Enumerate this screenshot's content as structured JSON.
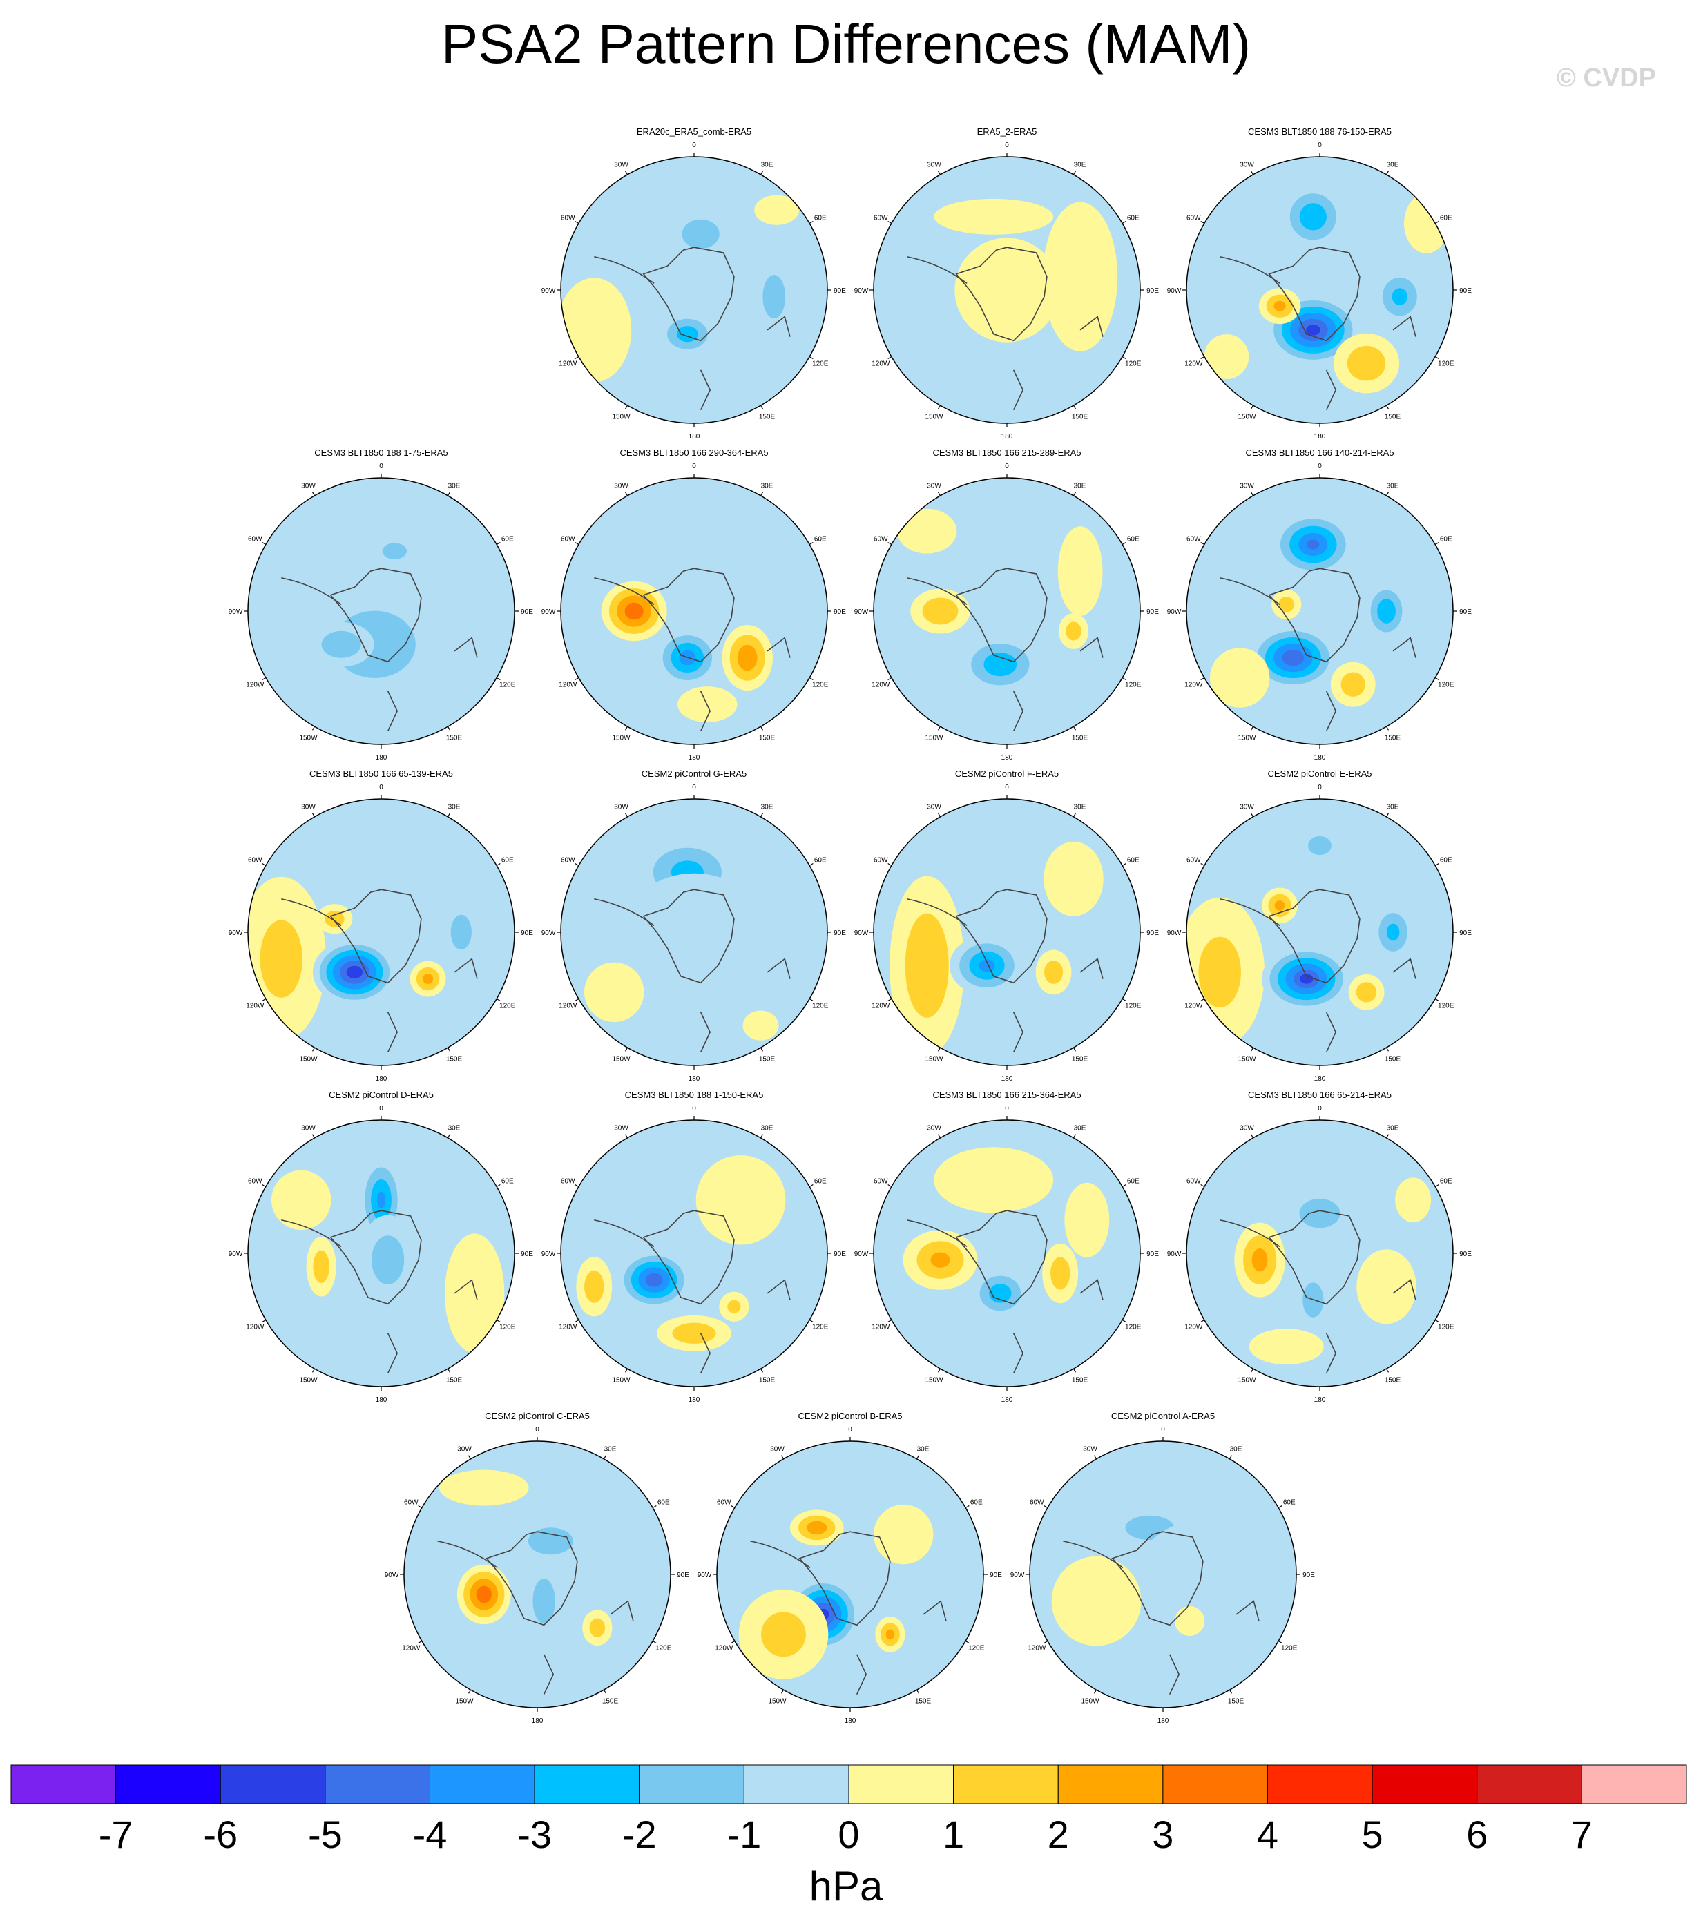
{
  "title": "PSA2 Pattern Differences (MAM)",
  "watermark": "© CVDP",
  "colors": {
    "land": "#444444",
    "levels": [
      "#7b22f0",
      "#1b00ff",
      "#2a3fe6",
      "#3b72ea",
      "#1e96ff",
      "#00c0ff",
      "#78c8f0",
      "#b4def4",
      "#fef898",
      "#ffd22d",
      "#ffa700",
      "#ff7300",
      "#ff2a00",
      "#e60000",
      "#d41f1f",
      "#ffb4b4"
    ]
  },
  "chart_data": {
    "type": "polar_contour_panels",
    "title": "PSA2 Pattern Differences (MAM)",
    "units": "hPa",
    "colorbar": {
      "ticks": [
        "-7",
        "-6",
        "-5",
        "-4",
        "-3",
        "-2",
        "-1",
        "0",
        "1",
        "2",
        "3",
        "4",
        "5",
        "6",
        "7"
      ],
      "label": "hPa",
      "min": -8,
      "max": 8,
      "interval": 1
    },
    "lon_labels": [
      "0",
      "30E",
      "60E",
      "90E",
      "120E",
      "150E",
      "180",
      "150W",
      "120W",
      "90W",
      "60W",
      "30W"
    ],
    "panels": [
      {
        "title": "ERA20c_ERA5_comb-ERA5",
        "row": 0,
        "col": 1,
        "blobs": [
          [
            0.05,
            -0.42,
            0.23,
            0.18,
            -1.6
          ],
          [
            -0.05,
            0.33,
            0.2,
            0.15,
            -2.5
          ],
          [
            0.6,
            0.05,
            0.13,
            0.25,
            -1.8
          ],
          [
            -0.75,
            0.3,
            0.25,
            0.35,
            0.6
          ],
          [
            0.62,
            -0.6,
            0.15,
            0.1,
            0.6
          ]
        ]
      },
      {
        "title": "ERA5_2-ERA5",
        "row": 0,
        "col": 2,
        "blobs": [
          [
            0.0,
            0.0,
            0.35,
            0.35,
            0.8
          ],
          [
            0.55,
            -0.1,
            0.25,
            0.5,
            0.6
          ],
          [
            -0.1,
            -0.55,
            0.4,
            0.12,
            0.8
          ],
          [
            -0.35,
            0.55,
            0.15,
            0.1,
            -0.3
          ]
        ]
      },
      {
        "title": "CESM3 BLT1850 188 76-150-ERA5",
        "row": 0,
        "col": 3,
        "blobs": [
          [
            -0.05,
            0.3,
            0.32,
            0.24,
            -5.2
          ],
          [
            -0.05,
            -0.55,
            0.22,
            0.22,
            -2.8
          ],
          [
            0.6,
            0.05,
            0.18,
            0.2,
            -2.2
          ],
          [
            -0.3,
            0.12,
            0.14,
            0.12,
            2.2
          ],
          [
            0.35,
            0.55,
            0.22,
            0.2,
            1.8
          ],
          [
            0.8,
            -0.5,
            0.15,
            0.2,
            0.8
          ],
          [
            -0.7,
            0.5,
            0.15,
            0.15,
            0.7
          ]
        ]
      },
      {
        "title": "CESM3 BLT1850 188 1-75-ERA5",
        "row": 1,
        "col": 0,
        "blobs": [
          [
            -0.05,
            0.25,
            0.55,
            0.45,
            -1.4
          ],
          [
            -0.3,
            0.25,
            0.22,
            0.15,
            -1.9
          ],
          [
            0.1,
            -0.45,
            0.15,
            0.1,
            -1.6
          ],
          [
            0.6,
            0.15,
            0.25,
            0.35,
            -0.5
          ]
        ]
      },
      {
        "title": "CESM3 BLT1850 166 290-364-ERA5",
        "row": 1,
        "col": 1,
        "blobs": [
          [
            -0.45,
            0.0,
            0.22,
            0.2,
            3.6
          ],
          [
            -0.05,
            0.35,
            0.22,
            0.2,
            -3.4
          ],
          [
            0.4,
            0.35,
            0.17,
            0.22,
            2.7
          ],
          [
            0.1,
            0.7,
            0.2,
            0.12,
            0.8
          ],
          [
            0.0,
            -0.55,
            0.45,
            0.3,
            -0.6
          ]
        ]
      },
      {
        "title": "CESM3 BLT1850 166 215-289-ERA5",
        "row": 1,
        "col": 2,
        "blobs": [
          [
            -0.5,
            0.0,
            0.2,
            0.15,
            1.9
          ],
          [
            -0.05,
            0.4,
            0.28,
            0.2,
            -2.7
          ],
          [
            0.5,
            0.15,
            0.1,
            0.12,
            1.5
          ],
          [
            0.55,
            -0.3,
            0.15,
            0.3,
            0.6
          ],
          [
            -0.6,
            -0.6,
            0.2,
            0.15,
            0.7
          ]
        ]
      },
      {
        "title": "CESM3 BLT1850 166 140-214-ERA5",
        "row": 1,
        "col": 3,
        "blobs": [
          [
            -0.05,
            -0.5,
            0.28,
            0.22,
            -4.0
          ],
          [
            -0.2,
            0.35,
            0.3,
            0.22,
            -4.7
          ],
          [
            0.5,
            0.0,
            0.15,
            0.2,
            -2.8
          ],
          [
            0.25,
            0.55,
            0.15,
            0.15,
            1.6
          ],
          [
            -0.25,
            -0.05,
            0.1,
            0.1,
            1.5
          ],
          [
            -0.6,
            0.5,
            0.2,
            0.2,
            0.7
          ]
        ]
      },
      {
        "title": "CESM3 BLT1850 166 65-139-ERA5",
        "row": 2,
        "col": 0,
        "blobs": [
          [
            -0.75,
            0.2,
            0.3,
            0.55,
            1.3
          ],
          [
            -0.2,
            0.3,
            0.28,
            0.22,
            -5.6
          ],
          [
            0.35,
            0.35,
            0.12,
            0.12,
            2.2
          ],
          [
            0.6,
            0.0,
            0.12,
            0.2,
            -1.8
          ],
          [
            -0.35,
            -0.1,
            0.12,
            0.1,
            1.6
          ],
          [
            -0.1,
            -0.6,
            0.25,
            0.2,
            -0.6
          ]
        ]
      },
      {
        "title": "CESM2 piControl G-ERA5",
        "row": 2,
        "col": 1,
        "blobs": [
          [
            -0.05,
            -0.45,
            0.35,
            0.25,
            -2.3
          ],
          [
            0.0,
            -0.05,
            0.45,
            0.35,
            -0.6
          ],
          [
            0.5,
            0.7,
            0.12,
            0.1,
            0.8
          ],
          [
            -0.6,
            0.45,
            0.2,
            0.2,
            0.7
          ]
        ]
      },
      {
        "title": "CESM2 piControl F-ERA5",
        "row": 2,
        "col": 2,
        "blobs": [
          [
            -0.6,
            0.25,
            0.25,
            0.6,
            1.8
          ],
          [
            -0.15,
            0.25,
            0.25,
            0.2,
            -3.2
          ],
          [
            0.35,
            0.3,
            0.12,
            0.15,
            1.5
          ],
          [
            0.5,
            -0.4,
            0.2,
            0.25,
            0.7
          ]
        ]
      },
      {
        "title": "CESM2 piControl E-ERA5",
        "row": 2,
        "col": 3,
        "blobs": [
          [
            -0.75,
            0.3,
            0.3,
            0.5,
            1.3
          ],
          [
            -0.1,
            0.35,
            0.3,
            0.22,
            -5.0
          ],
          [
            0.55,
            0.0,
            0.15,
            0.2,
            -2.2
          ],
          [
            -0.3,
            -0.2,
            0.12,
            0.12,
            2.2
          ],
          [
            0.35,
            0.45,
            0.12,
            0.12,
            1.7
          ],
          [
            0.0,
            -0.65,
            0.15,
            0.12,
            -1.5
          ]
        ]
      },
      {
        "title": "CESM2 piControl D-ERA5",
        "row": 3,
        "col": 0,
        "blobs": [
          [
            0.0,
            -0.4,
            0.15,
            0.3,
            -3.1
          ],
          [
            0.05,
            0.05,
            0.2,
            0.3,
            -1.6
          ],
          [
            -0.45,
            0.1,
            0.1,
            0.2,
            1.6
          ],
          [
            0.7,
            0.3,
            0.2,
            0.4,
            0.7
          ],
          [
            -0.6,
            -0.4,
            0.2,
            0.2,
            0.7
          ]
        ]
      },
      {
        "title": "CESM3 BLT1850 188 1-150-ERA5",
        "row": 3,
        "col": 1,
        "blobs": [
          [
            -0.3,
            0.2,
            0.25,
            0.2,
            -4.6
          ],
          [
            -0.75,
            0.25,
            0.12,
            0.2,
            1.6
          ],
          [
            0.0,
            0.6,
            0.25,
            0.12,
            1.8
          ],
          [
            0.3,
            0.4,
            0.1,
            0.1,
            1.2
          ],
          [
            0.35,
            -0.4,
            0.3,
            0.3,
            0.7
          ]
        ]
      },
      {
        "title": "CESM3 BLT1850 166 215-364-ERA5",
        "row": 3,
        "col": 2,
        "blobs": [
          [
            -0.5,
            0.05,
            0.25,
            0.2,
            2.1
          ],
          [
            -0.05,
            0.3,
            0.2,
            0.17,
            -2.6
          ],
          [
            0.4,
            0.15,
            0.12,
            0.2,
            1.6
          ],
          [
            -0.1,
            -0.55,
            0.4,
            0.22,
            0.7
          ],
          [
            0.6,
            -0.25,
            0.15,
            0.25,
            0.6
          ]
        ]
      },
      {
        "title": "CESM3 BLT1850 166 65-214-ERA5",
        "row": 3,
        "col": 3,
        "blobs": [
          [
            -0.45,
            0.05,
            0.17,
            0.25,
            2.3
          ],
          [
            -0.05,
            0.35,
            0.12,
            0.2,
            -1.8
          ],
          [
            0.0,
            -0.3,
            0.25,
            0.18,
            -1.6
          ],
          [
            0.5,
            0.25,
            0.2,
            0.25,
            0.8
          ],
          [
            -0.25,
            0.7,
            0.25,
            0.12,
            0.7
          ],
          [
            0.7,
            -0.4,
            0.12,
            0.15,
            0.6
          ]
        ]
      },
      {
        "title": "CESM2 piControl C-ERA5",
        "row": 4,
        "col": 0,
        "blobs": [
          [
            -0.4,
            0.15,
            0.18,
            0.2,
            3.6
          ],
          [
            0.1,
            -0.25,
            0.25,
            0.15,
            -1.9
          ],
          [
            0.05,
            0.2,
            0.15,
            0.3,
            -1.4
          ],
          [
            0.45,
            0.4,
            0.1,
            0.12,
            1.5
          ],
          [
            -0.4,
            -0.65,
            0.3,
            0.12,
            0.7
          ]
        ]
      },
      {
        "title": "CESM2 piControl B-ERA5",
        "row": 4,
        "col": 1,
        "blobs": [
          [
            -0.2,
            0.3,
            0.25,
            0.25,
            -5.2
          ],
          [
            -0.25,
            -0.35,
            0.18,
            0.12,
            2.6
          ],
          [
            0.3,
            0.45,
            0.1,
            0.12,
            2.2
          ],
          [
            -0.5,
            0.45,
            0.3,
            0.3,
            1.4
          ],
          [
            0.4,
            -0.3,
            0.2,
            0.2,
            0.6
          ]
        ]
      },
      {
        "title": "CESM2 piControl A-ERA5",
        "row": 4,
        "col": 2,
        "blobs": [
          [
            -0.1,
            -0.35,
            0.3,
            0.15,
            -1.6
          ],
          [
            0.3,
            0.15,
            0.5,
            0.5,
            -0.6
          ],
          [
            0.2,
            0.35,
            0.1,
            0.1,
            0.8
          ],
          [
            -0.5,
            0.2,
            0.3,
            0.3,
            0.8
          ]
        ]
      }
    ]
  }
}
